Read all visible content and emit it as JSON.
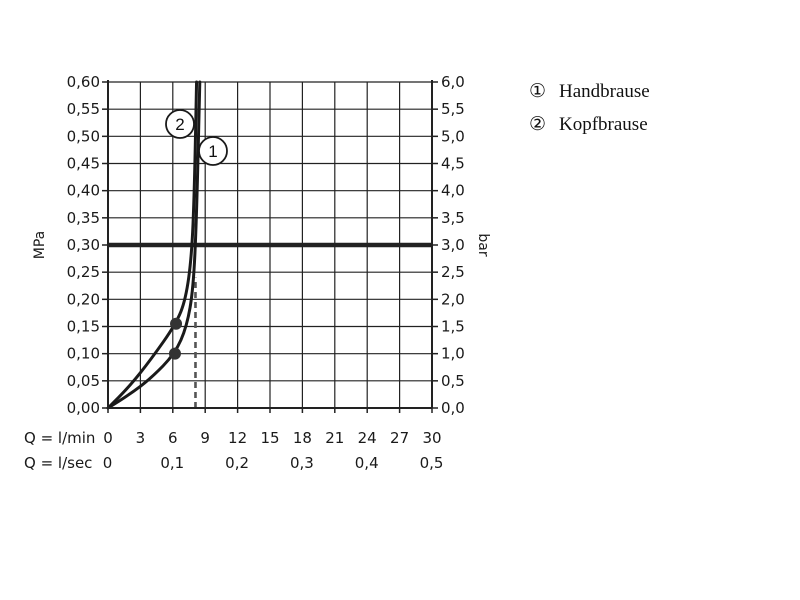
{
  "chart_data": {
    "type": "line",
    "left_axis": {
      "label": "MPa",
      "ylim": [
        0,
        0.6
      ],
      "ticks": [
        "0,00",
        "0,05",
        "0,10",
        "0,15",
        "0,20",
        "0,25",
        "0,30",
        "0,35",
        "0,40",
        "0,45",
        "0,50",
        "0,55",
        "0,60"
      ]
    },
    "right_axis": {
      "label": "bar",
      "ylim": [
        0,
        6
      ],
      "ticks": [
        "0,0",
        "0,5",
        "1,0",
        "1,5",
        "2,0",
        "2,5",
        "3,0",
        "3,5",
        "4,0",
        "4,5",
        "5,0",
        "5,5",
        "6,0"
      ]
    },
    "x_axis_lmin": {
      "label": "Q = l/min",
      "xlim": [
        0,
        30
      ],
      "values": [
        0,
        3,
        6,
        9,
        12,
        15,
        18,
        21,
        24,
        27,
        30
      ],
      "ticks": [
        "0",
        "3",
        "6",
        "9",
        "12",
        "15",
        "18",
        "21",
        "24",
        "27",
        "30"
      ]
    },
    "x_axis_lsec": {
      "label": "Q = l/sec",
      "values": [
        0,
        0.1,
        0.2,
        0.3,
        0.4,
        0.5
      ],
      "ticks": [
        "0",
        "0,1",
        "0,2",
        "0,3",
        "0,4",
        "0,5"
      ]
    },
    "grid": true,
    "reference_line": {
      "y": 0.3
    },
    "dashed_line": {
      "x": 8.1,
      "y_range": [
        0,
        0.24
      ]
    },
    "legend": {
      "placement": "top-right",
      "entries": [
        {
          "marker": "①",
          "name": "Handbrause"
        },
        {
          "marker": "②",
          "name": "Kopfbrause"
        }
      ]
    },
    "series": [
      {
        "id": "handbrause",
        "marker_text": "1",
        "x": [
          0,
          2,
          4,
          6.2,
          7.3,
          7.9,
          8.2,
          8.5
        ],
        "y": [
          0,
          0.025,
          0.055,
          0.1,
          0.15,
          0.22,
          0.35,
          0.6
        ],
        "dot": {
          "x": 6.2,
          "y": 0.1
        }
      },
      {
        "id": "kopfbrause",
        "marker_text": "2",
        "x": [
          0,
          2,
          4,
          6.3,
          7.2,
          7.75,
          8.0,
          8.2
        ],
        "y": [
          0,
          0.04,
          0.09,
          0.155,
          0.2,
          0.28,
          0.4,
          0.6
        ],
        "dot": {
          "x": 6.3,
          "y": 0.155
        }
      }
    ]
  }
}
